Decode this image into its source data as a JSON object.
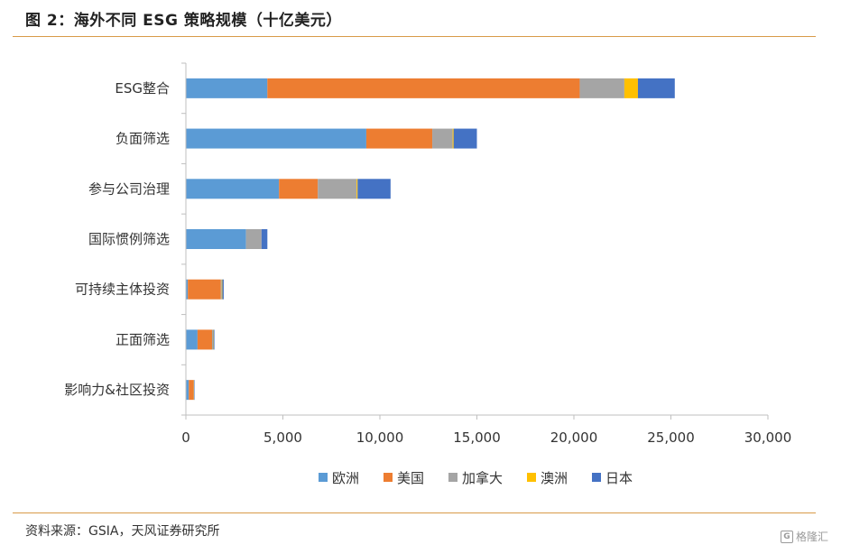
{
  "title": "图 2：海外不同 ESG 策略规模（十亿美元）",
  "source": "资料来源：GSIA，天风证券研究所",
  "watermark": "格隆汇",
  "chart_data": {
    "type": "bar",
    "orientation": "horizontal",
    "stacked": true,
    "categories": [
      "ESG整合",
      "负面筛选",
      "参与公司治理",
      "国际惯例筛选",
      "可持续主体投资",
      "正面筛选",
      "影响力&社区投资"
    ],
    "series": [
      {
        "name": "欧洲",
        "color": "#5b9bd5",
        "values": [
          4200,
          9300,
          4800,
          3100,
          100,
          600,
          150
        ]
      },
      {
        "name": "美国",
        "color": "#ed7d31",
        "values": [
          16100,
          3400,
          2000,
          0,
          1700,
          750,
          250
        ]
      },
      {
        "name": "加拿大",
        "color": "#a5a5a5",
        "values": [
          2300,
          1050,
          2000,
          800,
          50,
          50,
          10
        ]
      },
      {
        "name": "澳洲",
        "color": "#ffc000",
        "values": [
          700,
          50,
          50,
          0,
          30,
          20,
          10
        ]
      },
      {
        "name": "日本",
        "color": "#4472c4",
        "values": [
          1900,
          1200,
          1700,
          300,
          70,
          50,
          10
        ]
      }
    ],
    "xlim": [
      0,
      30000
    ],
    "x_ticks": [
      "0",
      "5,000",
      "10,000",
      "15,000",
      "20,000",
      "25,000",
      "30,000"
    ],
    "x_tick_values": [
      0,
      5000,
      10000,
      15000,
      20000,
      25000,
      30000
    ],
    "grid": false,
    "legend_position": "bottom"
  }
}
